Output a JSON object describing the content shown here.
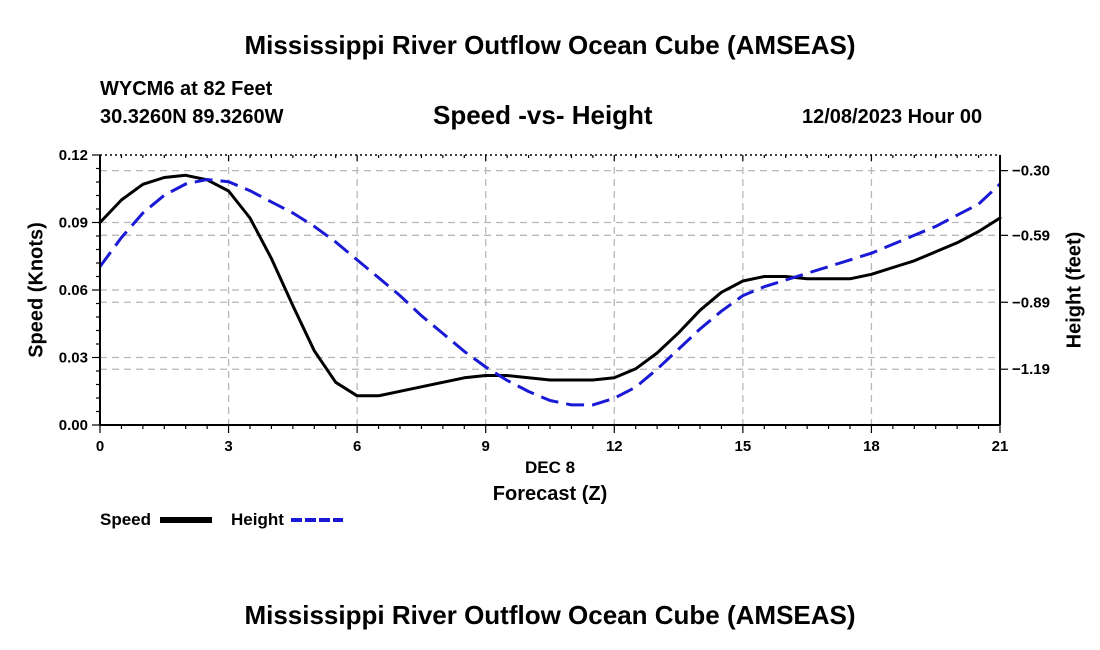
{
  "page": {
    "title_top": "Mississippi River Outflow Ocean Cube (AMSEAS)",
    "title_bottom": "Mississippi River Outflow Ocean Cube (AMSEAS)",
    "station": "WYCM6 at 82 Feet",
    "coords": "30.3260N  89.3260W",
    "subtitle": "Speed -vs- Height",
    "datetime": "12/08/2023 Hour 00"
  },
  "legend": {
    "speed_label": "Speed",
    "height_label": "Height"
  },
  "chart_data": {
    "type": "line",
    "xlabel_top": "DEC 8",
    "xlabel": "Forecast (Z)",
    "ylabel_left": "Speed (Knots)",
    "ylabel_right": "Height (feet)",
    "xlim": [
      0,
      21
    ],
    "ylim_left": [
      0,
      0.12
    ],
    "ylim_right": [
      -1.44,
      -0.23
    ],
    "x_ticks": [
      0,
      3,
      6,
      9,
      12,
      15,
      18,
      21
    ],
    "x_tick_labels": [
      "0",
      "3",
      "6",
      "9",
      "12",
      "15",
      "18",
      "21"
    ],
    "y_left_ticks": [
      0,
      0.03,
      0.06,
      0.09,
      0.12
    ],
    "y_left_tick_labels": [
      "0.00",
      "0.03",
      "0.06",
      "0.09",
      "0.12"
    ],
    "y_right_ticks": [
      -0.3,
      -0.59,
      -0.89,
      -1.19
    ],
    "y_right_tick_labels": [
      "−0.30",
      "−0.59",
      "−0.89",
      "−1.19"
    ],
    "grid": true,
    "series": [
      {
        "name": "Speed",
        "axis": "left",
        "color": "#000000",
        "style": "solid",
        "x": [
          0,
          0.5,
          1,
          1.5,
          2,
          2.5,
          3,
          3.5,
          4,
          4.5,
          5,
          5.5,
          6,
          6.5,
          7,
          7.5,
          8,
          8.5,
          9,
          9.5,
          10,
          10.5,
          11,
          11.5,
          12,
          12.5,
          13,
          13.5,
          14,
          14.5,
          15,
          15.5,
          16,
          16.5,
          17,
          17.5,
          18,
          18.5,
          19,
          19.5,
          20,
          20.5,
          21
        ],
        "values": [
          0.09,
          0.1,
          0.107,
          0.11,
          0.111,
          0.109,
          0.104,
          0.092,
          0.074,
          0.053,
          0.033,
          0.019,
          0.013,
          0.013,
          0.015,
          0.017,
          0.019,
          0.021,
          0.022,
          0.022,
          0.021,
          0.02,
          0.02,
          0.02,
          0.021,
          0.025,
          0.032,
          0.041,
          0.051,
          0.059,
          0.064,
          0.066,
          0.066,
          0.065,
          0.065,
          0.065,
          0.067,
          0.07,
          0.073,
          0.077,
          0.081,
          0.086,
          0.092
        ]
      },
      {
        "name": "Height",
        "axis": "right",
        "color": "#1a1ad6",
        "style": "dashed",
        "x": [
          0,
          0.5,
          1,
          1.5,
          2,
          2.5,
          3,
          3.5,
          4,
          4.5,
          5,
          5.5,
          6,
          6.5,
          7,
          7.5,
          8,
          8.5,
          9,
          9.5,
          10,
          10.5,
          11,
          11.5,
          12,
          12.5,
          13,
          13.5,
          14,
          14.5,
          15,
          15.5,
          16,
          16.5,
          17,
          17.5,
          18,
          18.5,
          19,
          19.5,
          20,
          20.5,
          21
        ],
        "values": [
          -0.73,
          -0.6,
          -0.49,
          -0.41,
          -0.36,
          -0.34,
          -0.35,
          -0.39,
          -0.44,
          -0.49,
          -0.55,
          -0.62,
          -0.7,
          -0.78,
          -0.86,
          -0.95,
          -1.03,
          -1.11,
          -1.18,
          -1.24,
          -1.29,
          -1.33,
          -1.35,
          -1.35,
          -1.32,
          -1.27,
          -1.19,
          -1.1,
          -1.01,
          -0.93,
          -0.86,
          -0.82,
          -0.79,
          -0.76,
          -0.73,
          -0.7,
          -0.67,
          -0.63,
          -0.59,
          -0.55,
          -0.5,
          -0.45,
          -0.36
        ]
      }
    ]
  }
}
